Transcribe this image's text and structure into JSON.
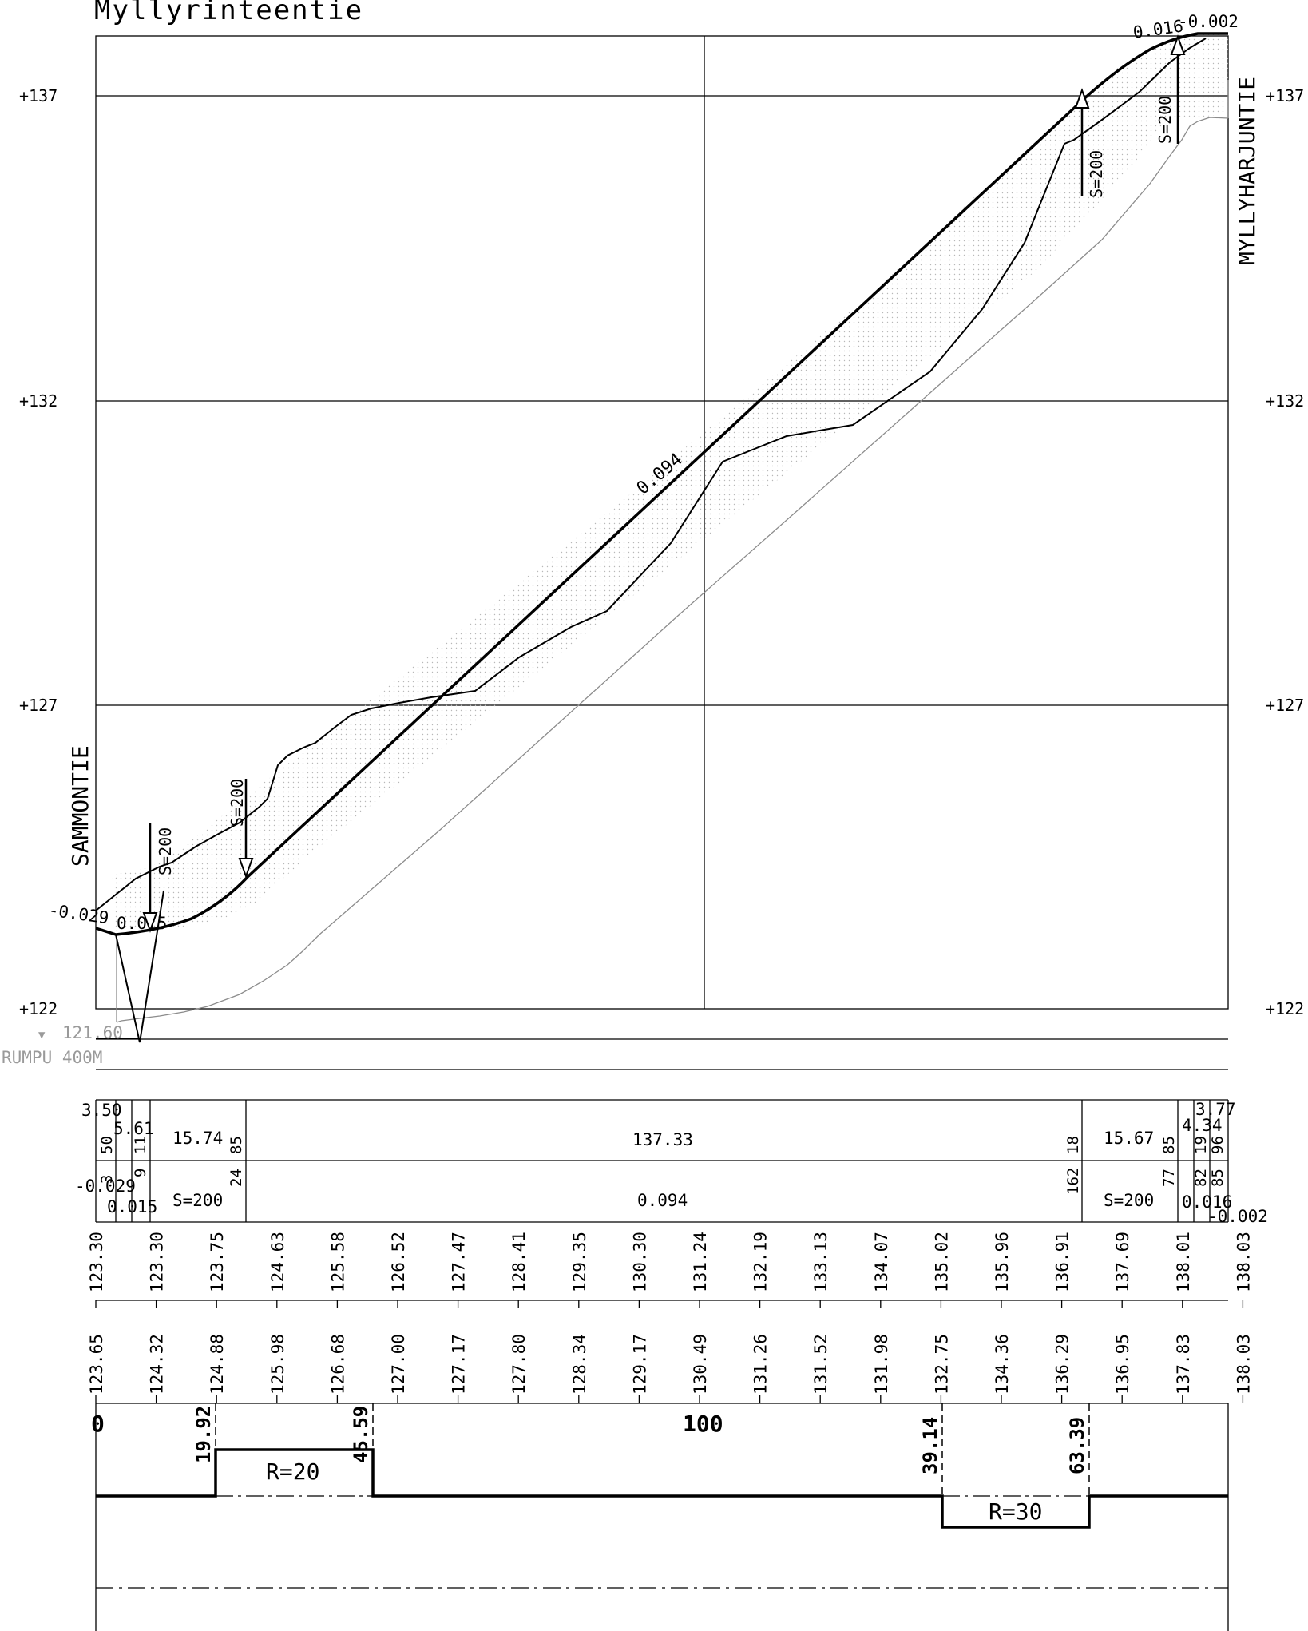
{
  "title": "Myllyrinteentie",
  "start_road": "SAMMONTIE",
  "end_road": "MYLLYHARJUNTIE",
  "culvert": {
    "level": "121.60",
    "label": "RUMPU 400M"
  },
  "elevation_labels": [
    "+137",
    "+132",
    "+127",
    "+122"
  ],
  "grade_labels": {
    "main": "0.094",
    "start": "-0.029",
    "start2": "0.015",
    "end1": "0.016",
    "end2": "-0.002"
  },
  "vertical_curves": [
    "S=200",
    "S=200",
    "S=200",
    "S=200"
  ],
  "profile_table": {
    "row1": [
      "3.50",
      "5.61",
      "15.74",
      "137.33",
      "15.67",
      "4.34",
      "3.77"
    ],
    "row1_small": [
      "50",
      "11",
      "85",
      "18",
      "85",
      "19",
      "96"
    ],
    "row2": [
      "-0.029",
      "0.015",
      "S=200",
      "0.094",
      "S=200",
      "0.016",
      "-0.002"
    ],
    "row2_small": [
      "3",
      "9",
      "24",
      "162",
      "77",
      "82",
      "85"
    ]
  },
  "design_levels": [
    "123.30",
    "123.30",
    "123.75",
    "124.63",
    "125.58",
    "126.52",
    "127.47",
    "128.41",
    "129.35",
    "130.30",
    "131.24",
    "132.19",
    "133.13",
    "134.07",
    "135.02",
    "135.96",
    "136.91",
    "137.69",
    "138.01",
    "138.03"
  ],
  "ground_levels": [
    "123.65",
    "124.32",
    "124.88",
    "125.98",
    "126.68",
    "127.00",
    "127.17",
    "127.80",
    "128.34",
    "129.17",
    "130.49",
    "131.26",
    "131.52",
    "131.98",
    "132.75",
    "134.36",
    "136.29",
    "136.95",
    "137.83",
    "138.03"
  ],
  "stations": {
    "start": "0",
    "mid": "100"
  },
  "horizontal_curves": [
    {
      "start": "19.92",
      "end": "45.59",
      "label": "R=20"
    },
    {
      "start": "39.14",
      "end": "63.39",
      "label": "R=30"
    }
  ],
  "chart_data": {
    "type": "line",
    "title": "Myllyrinteentie",
    "ylabel": "",
    "ylim": [
      122,
      138
    ],
    "xlim": [
      0,
      187
    ],
    "y_ticks": [
      "+122",
      "+127",
      "+132",
      "+137"
    ],
    "series": [
      {
        "x": [
          0,
          4,
          13,
          20,
          28,
          40,
          52,
          62,
          70,
          78,
          87,
          96,
          106,
          115,
          124,
          133,
          142,
          151,
          160,
          168,
          172,
          177,
          181,
          184,
          187
        ],
        "y": [
          123.3,
          123.21,
          123.25,
          123.4,
          123.6,
          124.14,
          125.1,
          126.05,
          126.9,
          127.65,
          128.46,
          129.3,
          130.15,
          131.0,
          131.85,
          132.7,
          133.6,
          134.4,
          135.3,
          136.1,
          136.5,
          136.85,
          137.03,
          137.05,
          137.05
        ]
      },
      {
        "x": [
          0,
          5,
          10,
          15,
          20,
          25,
          28,
          30,
          34,
          38,
          42,
          47,
          55,
          63,
          70,
          75,
          82,
          87,
          95,
          100,
          104,
          114,
          125,
          138,
          145,
          150,
          155,
          160,
          165,
          169,
          172,
          177,
          181,
          184,
          187
        ],
        "y": [
          123.65,
          123.95,
          124.32,
          124.6,
          124.88,
          125.3,
          125.5,
          126.0,
          126.3,
          126.5,
          126.9,
          127.1,
          127.25,
          127.35,
          127.6,
          127.8,
          128.2,
          128.4,
          129.0,
          129.8,
          130.6,
          131.05,
          131.3,
          132.0,
          132.9,
          133.8,
          135.0,
          136.2,
          136.5,
          136.8,
          137.0,
          137.35,
          137.7,
          137.9,
          138.03
        ]
      },
      {
        "x": [
          3,
          7,
          15,
          25,
          35,
          45,
          55,
          70,
          85,
          100,
          115,
          130,
          145,
          160,
          170,
          178,
          182,
          187
        ],
        "y": [
          121.6,
          121.7,
          121.85,
          122.3,
          122.95,
          123.7,
          124.45,
          125.6,
          126.75,
          127.9,
          129.05,
          130.2,
          131.35,
          132.5,
          133.6,
          134.2,
          134.55,
          134.55
        ]
      }
    ]
  }
}
